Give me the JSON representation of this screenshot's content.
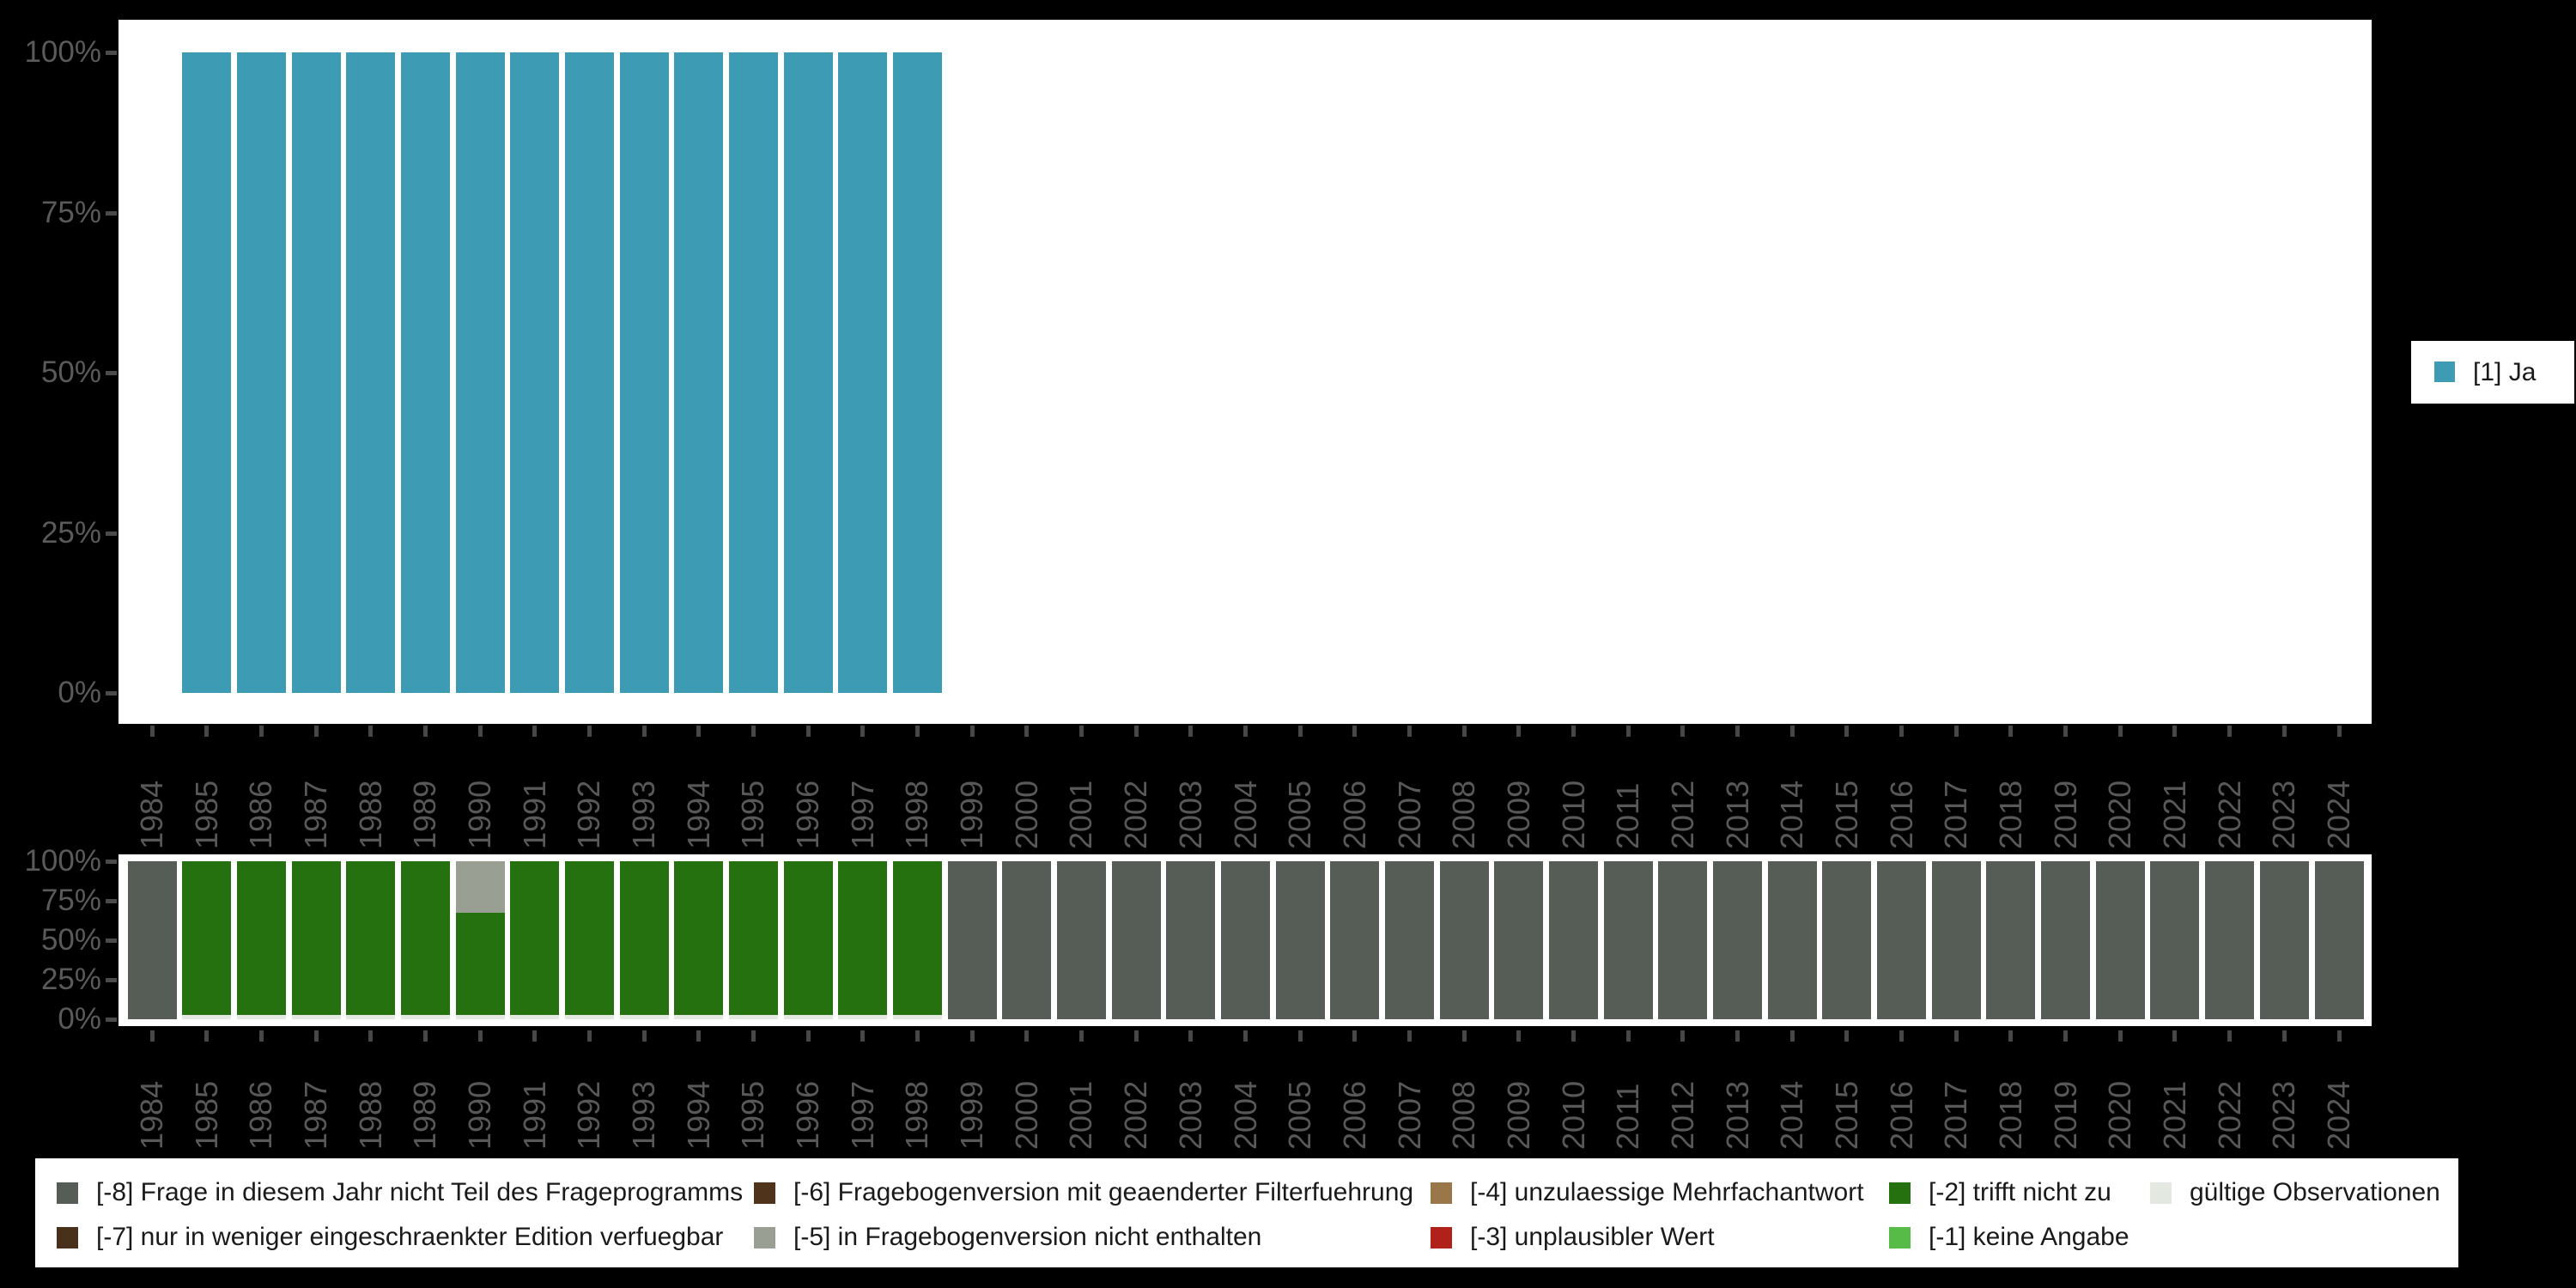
{
  "page": {
    "background": "#000000"
  },
  "colors": {
    "ja": "#3d9cb4",
    "minus8": "#565d56",
    "minus7": "#48301a",
    "minus6": "#4f341b",
    "minus5": "#9a9f94",
    "minus4": "#997749",
    "minus3": "#b0211a",
    "minus2": "#26710f",
    "minus1": "#57bb47",
    "valid": "#e3e8e0",
    "axis_text": "#5a5a5a",
    "tick_mark": "#474747"
  },
  "years": [
    "1984",
    "1985",
    "1986",
    "1987",
    "1988",
    "1989",
    "1990",
    "1991",
    "1992",
    "1993",
    "1994",
    "1995",
    "1996",
    "1997",
    "1998",
    "1999",
    "2000",
    "2001",
    "2002",
    "2003",
    "2004",
    "2005",
    "2006",
    "2007",
    "2008",
    "2009",
    "2010",
    "2011",
    "2012",
    "2013",
    "2014",
    "2015",
    "2016",
    "2017",
    "2018",
    "2019",
    "2020",
    "2021",
    "2022",
    "2023",
    "2024"
  ],
  "y_tick_labels": [
    "100%",
    "75%",
    "50%",
    "25%",
    "0%"
  ],
  "top_legend": {
    "items": [
      {
        "label": "[1] Ja",
        "color": "#3d9cb4"
      }
    ]
  },
  "bottom_legend": {
    "items": [
      {
        "label": "[-8] Frage in diesem Jahr nicht Teil des Frageprogramms",
        "color": "#565d56"
      },
      {
        "label": "[-7] nur in weniger eingeschraenkter Edition verfuegbar",
        "color": "#48301a"
      },
      {
        "label": "[-6] Fragebogenversion mit geaenderter Filterfuehrung",
        "color": "#4f341b"
      },
      {
        "label": "[-5] in Fragebogenversion nicht enthalten",
        "color": "#9a9f94"
      },
      {
        "label": "[-4] unzulaessige Mehrfachantwort",
        "color": "#997749"
      },
      {
        "label": "[-3] unplausibler Wert",
        "color": "#b0211a"
      },
      {
        "label": "[-2] trifft nicht zu",
        "color": "#26710f"
      },
      {
        "label": "[-1] keine Angabe",
        "color": "#57bb47"
      },
      {
        "label": "gültige Observationen",
        "color": "#e3e8e0"
      }
    ]
  },
  "chart_data": [
    {
      "type": "bar",
      "title": "",
      "xlabel": "",
      "ylabel": "",
      "ylim": [
        0,
        100
      ],
      "y_ticks": [
        0,
        25,
        50,
        75,
        100
      ],
      "grid": false,
      "legend_position": "right",
      "categories": [
        "1984",
        "1985",
        "1986",
        "1987",
        "1988",
        "1989",
        "1990",
        "1991",
        "1992",
        "1993",
        "1994",
        "1995",
        "1996",
        "1997",
        "1998",
        "1999",
        "2000",
        "2001",
        "2002",
        "2003",
        "2004",
        "2005",
        "2006",
        "2007",
        "2008",
        "2009",
        "2010",
        "2011",
        "2012",
        "2013",
        "2014",
        "2015",
        "2016",
        "2017",
        "2018",
        "2019",
        "2020",
        "2021",
        "2022",
        "2023",
        "2024"
      ],
      "series": [
        {
          "name": "[1] Ja",
          "color": "#3d9cb4",
          "values": [
            0,
            100,
            100,
            100,
            100,
            100,
            100,
            100,
            100,
            100,
            100,
            100,
            100,
            100,
            100,
            0,
            0,
            0,
            0,
            0,
            0,
            0,
            0,
            0,
            0,
            0,
            0,
            0,
            0,
            0,
            0,
            0,
            0,
            0,
            0,
            0,
            0,
            0,
            0,
            0,
            0
          ]
        }
      ]
    },
    {
      "type": "stacked-bar",
      "title": "",
      "xlabel": "",
      "ylabel": "",
      "ylim": [
        0,
        100
      ],
      "y_ticks": [
        0,
        25,
        50,
        75,
        100
      ],
      "grid": false,
      "legend_position": "bottom",
      "categories": [
        "1984",
        "1985",
        "1986",
        "1987",
        "1988",
        "1989",
        "1990",
        "1991",
        "1992",
        "1993",
        "1994",
        "1995",
        "1996",
        "1997",
        "1998",
        "1999",
        "2000",
        "2001",
        "2002",
        "2003",
        "2004",
        "2005",
        "2006",
        "2007",
        "2008",
        "2009",
        "2010",
        "2011",
        "2012",
        "2013",
        "2014",
        "2015",
        "2016",
        "2017",
        "2018",
        "2019",
        "2020",
        "2021",
        "2022",
        "2023",
        "2024"
      ],
      "series": [
        {
          "name": "gültige Observationen",
          "color": "#e3e8e0",
          "values": [
            0,
            2.5,
            2.5,
            2.5,
            2.5,
            2.5,
            2.5,
            2.5,
            2.5,
            2.5,
            2.5,
            2.5,
            2.5,
            2.5,
            2.5,
            0,
            0,
            0,
            0,
            0,
            0,
            0,
            0,
            0,
            0,
            0,
            0,
            0,
            0,
            0,
            0,
            0,
            0,
            0,
            0,
            0,
            0,
            0,
            0,
            0,
            0
          ]
        },
        {
          "name": "[-2] trifft nicht zu",
          "color": "#26710f",
          "values": [
            0,
            97.5,
            97.5,
            97.5,
            97.5,
            97.5,
            65,
            97.5,
            97.5,
            97.5,
            97.5,
            97.5,
            97.5,
            97.5,
            97.5,
            0,
            0,
            0,
            0,
            0,
            0,
            0,
            0,
            0,
            0,
            0,
            0,
            0,
            0,
            0,
            0,
            0,
            0,
            0,
            0,
            0,
            0,
            0,
            0,
            0,
            0
          ]
        },
        {
          "name": "[-5] in Fragebogenversion nicht enthalten",
          "color": "#9a9f94",
          "values": [
            0,
            0,
            0,
            0,
            0,
            0,
            32.5,
            0,
            0,
            0,
            0,
            0,
            0,
            0,
            0,
            0,
            0,
            0,
            0,
            0,
            0,
            0,
            0,
            0,
            0,
            0,
            0,
            0,
            0,
            0,
            0,
            0,
            0,
            0,
            0,
            0,
            0,
            0,
            0,
            0,
            0
          ]
        },
        {
          "name": "[-8] Frage in diesem Jahr nicht Teil des Frageprogramms",
          "color": "#565d56",
          "values": [
            100,
            0,
            0,
            0,
            0,
            0,
            0,
            0,
            0,
            0,
            0,
            0,
            0,
            0,
            0,
            100,
            100,
            100,
            100,
            100,
            100,
            100,
            100,
            100,
            100,
            100,
            100,
            100,
            100,
            100,
            100,
            100,
            100,
            100,
            100,
            100,
            100,
            100,
            100,
            100,
            100
          ]
        }
      ]
    }
  ]
}
